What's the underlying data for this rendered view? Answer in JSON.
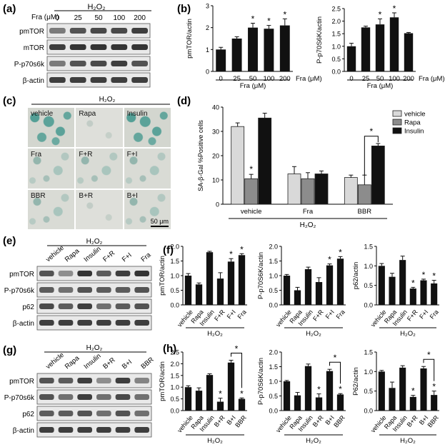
{
  "panels": {
    "a": "(a)",
    "b": "(b)",
    "c": "(c)",
    "d": "(d)",
    "e": "(e)",
    "f": "(f)",
    "g": "(g)",
    "h": "(h)"
  },
  "h2o2": "H₂O₂",
  "fra_unit": "Fra (μM)",
  "fra_doses": [
    "0",
    "25",
    "50",
    "100",
    "200"
  ],
  "blot_a_rows": [
    "pmTOR",
    "mTOR",
    "P-p70s6k",
    "β-actin"
  ],
  "blot_e_cols": [
    "vehicle",
    "Rapa",
    "Insulin",
    "F+R",
    "F+I",
    "Fra"
  ],
  "blot_e_rows": [
    "pmTOR",
    "P-p70s6k",
    "p62",
    "β-actin"
  ],
  "blot_g_cols": [
    "vehicle",
    "Rapa",
    "Insulin",
    "B+R",
    "B+I",
    "BBR"
  ],
  "blot_g_rows": [
    "pmTOR",
    "P-p70s6k",
    "p62",
    "β-actin"
  ],
  "micro": {
    "labels": [
      "vehicle",
      "Rapa",
      "Insulin",
      "Fra",
      "F+R",
      "F+I",
      "BBR",
      "B+R",
      "B+I"
    ],
    "scale": "50 μm"
  },
  "star": "*",
  "chart_data": [
    {
      "id": "b1",
      "type": "bar",
      "ylabel": "pmTOR/actin",
      "xlabel": "Fra (μM)",
      "categories": [
        "0",
        "25",
        "50",
        "100",
        "200"
      ],
      "values": [
        1.0,
        1.5,
        2.0,
        1.95,
        2.1
      ],
      "errors": [
        0.1,
        0.08,
        0.2,
        0.15,
        0.3
      ],
      "ylim": [
        0,
        3
      ],
      "yticks": [
        "0",
        "1",
        "2",
        "3"
      ],
      "stars": [
        2,
        3,
        4
      ]
    },
    {
      "id": "b2",
      "type": "bar",
      "ylabel": "P-p70S6K/actin",
      "xlabel": "Fra (μM)",
      "categories": [
        "0",
        "25",
        "50",
        "100",
        "200"
      ],
      "values": [
        1.0,
        1.75,
        1.87,
        2.15,
        1.52
      ],
      "errors": [
        0.12,
        0.05,
        0.22,
        0.18,
        0.03
      ],
      "ylim": [
        0,
        2.5
      ],
      "yticks": [
        "0.0",
        "0.5",
        "1.0",
        "1.5",
        "2.0",
        "2.5"
      ],
      "stars": [
        2,
        3
      ]
    },
    {
      "id": "d",
      "type": "bar",
      "ylabel": "SA-β-Gal %Positive cells",
      "xlabel": "H₂O₂",
      "categories": [
        "vehicle",
        "Fra",
        "BBR"
      ],
      "series": [
        {
          "name": "vehicle",
          "values": [
            32,
            12.5,
            11
          ],
          "errors": [
            1.5,
            3,
            1
          ],
          "color": "#d9d9d9"
        },
        {
          "name": "Rapa",
          "values": [
            10.5,
            10.5,
            8
          ],
          "errors": [
            1.8,
            2.5,
            4
          ],
          "color": "#8c8c8c"
        },
        {
          "name": "Insulin",
          "values": [
            35.5,
            12.5,
            24
          ],
          "errors": [
            2,
            1.2,
            1
          ],
          "color": "#111111"
        }
      ],
      "ylim": [
        0,
        40
      ],
      "yticks": [
        "0",
        "10",
        "20",
        "30",
        "40"
      ]
    },
    {
      "id": "f1",
      "type": "bar",
      "ylabel": "pmTOR/actin",
      "xlabel": "H₂O₂",
      "categories": [
        "vehicle",
        "Rapa",
        "Insulin",
        "F+R",
        "F+I",
        "Fra"
      ],
      "values": [
        1.0,
        0.7,
        1.8,
        0.9,
        1.48,
        1.7
      ],
      "errors": [
        0.07,
        0.05,
        0.03,
        0.2,
        0.1,
        0.05
      ],
      "ylim": [
        0,
        2.0
      ],
      "yticks": [
        "0.0",
        "0.5",
        "1.0",
        "1.5",
        "2.0"
      ],
      "stars": [
        4,
        5
      ]
    },
    {
      "id": "f2",
      "type": "bar",
      "ylabel": "P-p70S6K/actin",
      "xlabel": "H₂O₂",
      "categories": [
        "vehicle",
        "Rapa",
        "Insulin",
        "F+R",
        "F+I",
        "Fra"
      ],
      "values": [
        1.0,
        0.5,
        1.22,
        0.78,
        1.35,
        1.58
      ],
      "errors": [
        0.04,
        0.1,
        0.07,
        0.15,
        0.05,
        0.07
      ],
      "ylim": [
        0,
        2.0
      ],
      "yticks": [
        "0.0",
        "0.5",
        "1.0",
        "1.5",
        "2.0"
      ],
      "stars": [
        4,
        5
      ]
    },
    {
      "id": "f3",
      "type": "bar",
      "ylabel": "p62/actin",
      "xlabel": "H₂O₂",
      "categories": [
        "vehicle",
        "Rapa",
        "Insulin",
        "F+R",
        "F+I",
        "Fra"
      ],
      "values": [
        1.0,
        0.72,
        1.15,
        0.42,
        0.63,
        0.55
      ],
      "errors": [
        0.06,
        0.09,
        0.1,
        0.03,
        0.03,
        0.08
      ],
      "ylim": [
        0,
        1.5
      ],
      "yticks": [
        "0.0",
        "0.5",
        "1.0",
        "1.5"
      ],
      "stars": [
        3,
        4,
        5
      ]
    },
    {
      "id": "h1",
      "type": "bar",
      "ylabel": "pmTOR/actin",
      "xlabel": "H₂O₂",
      "categories": [
        "vehicle",
        "Rapa",
        "Insulin",
        "B+R",
        "B+I",
        "BBR"
      ],
      "values": [
        1.0,
        0.85,
        1.52,
        0.38,
        2.05,
        0.5
      ],
      "errors": [
        0.06,
        0.12,
        0.05,
        0.15,
        0.1,
        0.04
      ],
      "ylim": [
        0,
        2.5
      ],
      "yticks": [
        "0.0",
        "0.5",
        "1.0",
        "1.5",
        "2.0",
        "2.5"
      ],
      "stars": [
        3,
        5
      ],
      "bracket": [
        4,
        5
      ]
    },
    {
      "id": "h2",
      "type": "bar",
      "ylabel": "P-p70S6K/actin",
      "xlabel": "H₂O₂",
      "categories": [
        "vehicle",
        "Rapa",
        "Insulin",
        "B+R",
        "B+I",
        "BBR"
      ],
      "values": [
        1.0,
        0.52,
        1.52,
        0.45,
        1.35,
        0.55
      ],
      "errors": [
        0.03,
        0.1,
        0.07,
        0.12,
        0.06,
        0.03
      ],
      "ylim": [
        0,
        2.0
      ],
      "yticks": [
        "0.0",
        "0.5",
        "1.0",
        "1.5",
        "2.0"
      ],
      "stars": [
        3,
        5
      ],
      "bracket": [
        4,
        5
      ]
    },
    {
      "id": "h3",
      "type": "bar",
      "ylabel": "P62/actin",
      "xlabel": "H₂O₂",
      "categories": [
        "vehicle",
        "Rapa",
        "Insulin",
        "B+R",
        "B+I",
        "BBR"
      ],
      "values": [
        1.0,
        0.58,
        1.1,
        0.35,
        1.08,
        0.4
      ],
      "errors": [
        0.03,
        0.15,
        0.05,
        0.04,
        0.05,
        0.1
      ],
      "ylim": [
        0,
        1.5
      ],
      "yticks": [
        "0.0",
        "0.5",
        "1.0",
        "1.5"
      ],
      "stars": [
        3,
        5
      ],
      "bracket": [
        4,
        5
      ]
    }
  ]
}
